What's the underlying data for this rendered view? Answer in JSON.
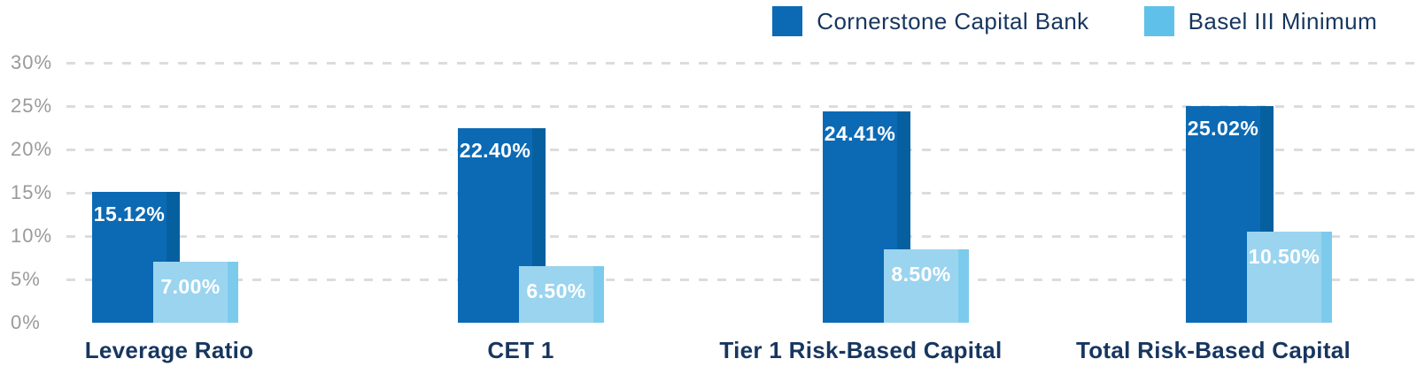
{
  "legend": {
    "items": [
      {
        "name": "cornerstone-capital-bank",
        "label": "Cornerstone Capital Bank",
        "swatch_color": "#0c6ab4"
      },
      {
        "name": "basel-iii-minimum",
        "label": "Basel III Minimum",
        "swatch_color": "#5fc1e9"
      }
    ]
  },
  "chart_data": {
    "type": "bar",
    "title": "",
    "xlabel": "",
    "ylabel": "",
    "categories": [
      "Leverage Ratio",
      "CET 1",
      "Tier 1 Risk-Based Capital",
      "Total Risk-Based Capital"
    ],
    "series": [
      {
        "name": "Cornerstone Capital Bank",
        "values": [
          15.12,
          22.4,
          24.41,
          25.02
        ],
        "data_labels": [
          "15.12%",
          "22.40%",
          "24.41%",
          "25.02%"
        ]
      },
      {
        "name": "Basel III Minimum",
        "values": [
          7.0,
          6.5,
          8.5,
          10.5
        ],
        "data_labels": [
          "7.00%",
          "6.50%",
          "8.50%",
          "10.50%"
        ]
      }
    ],
    "y_axis": {
      "ticks": [
        30,
        25,
        20,
        15,
        10,
        5,
        0
      ],
      "tick_labels": [
        "30%",
        "25%",
        "20%",
        "15%",
        "10%",
        "5%",
        "0%"
      ],
      "ylim": [
        0,
        30
      ]
    },
    "grid": {
      "horizontal": true,
      "style": "dashed",
      "zero_line": false
    },
    "legend_position": "top-right",
    "colors": {
      "series1_fill": "#0c6ab4",
      "series1_edge_strip": "#06609f",
      "series2_fill": "#9bd4ef",
      "series2_edge_strip": "#7ccbec",
      "legend_series2_swatch": "#5fc1e9",
      "value_label_text": "#ffffff",
      "category_label_text": "#17365f",
      "axis_label_text": "#9a9a9a",
      "gridline": "#dcdcdc",
      "background": "#ffffff"
    }
  }
}
